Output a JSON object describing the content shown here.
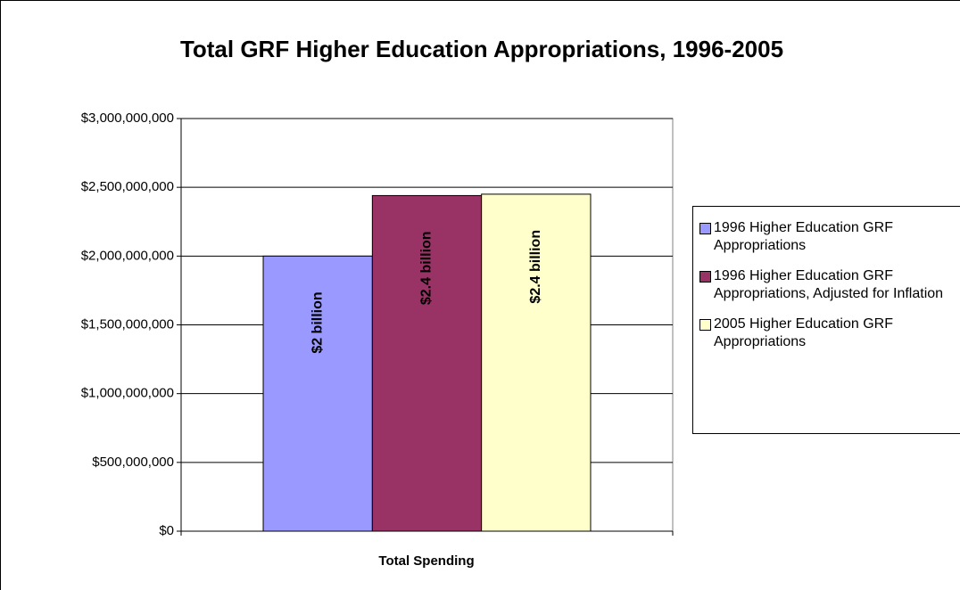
{
  "chart_data": {
    "type": "bar",
    "title": "Total GRF Higher Education Appropriations, 1996-2005",
    "xlabel": "Total Spending",
    "categories": [
      "Total Spending"
    ],
    "series": [
      {
        "name": "1996 Higher Education GRF Appropriations",
        "color": "#9999ff",
        "values": [
          2000000000
        ],
        "value_labels": [
          "$2 billion"
        ]
      },
      {
        "name": "1996 Higher Education GRF Appropriations, Adjusted for Inflation",
        "color": "#993366",
        "values": [
          2440000000
        ],
        "value_labels": [
          "$2.4 billion"
        ]
      },
      {
        "name": "2005 Higher Education GRF Appropriations",
        "color": "#ffffcc",
        "values": [
          2450000000
        ],
        "value_labels": [
          "$2.4 billion"
        ]
      }
    ],
    "ylim": [
      0,
      3000000000
    ],
    "yticks": [
      {
        "value": 0,
        "label": "$0"
      },
      {
        "value": 500000000,
        "label": "$500,000,000"
      },
      {
        "value": 1000000000,
        "label": "$1,000,000,000"
      },
      {
        "value": 1500000000,
        "label": "$1,500,000,000"
      },
      {
        "value": 2000000000,
        "label": "$2,000,000,000"
      },
      {
        "value": 2500000000,
        "label": "$2,500,000,000"
      },
      {
        "value": 3000000000,
        "label": "$3,000,000,000"
      }
    ],
    "grid": true,
    "legend": "right"
  }
}
